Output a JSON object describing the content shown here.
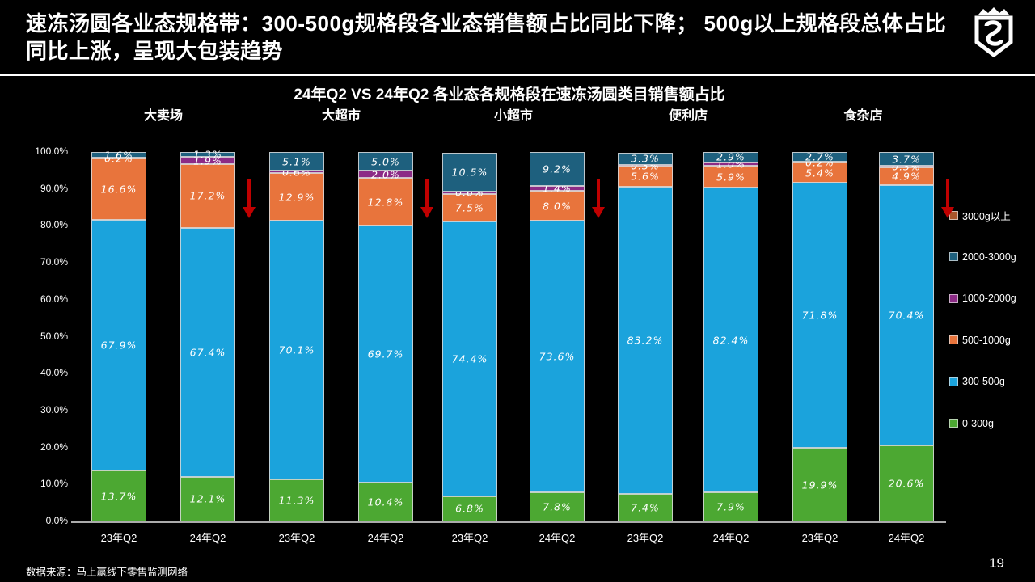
{
  "header": {
    "title": "速冻汤圆各业态规格带：300-500g规格段各业态销售额占比同比下降； 500g以上规格段总体占比同比上涨，呈现大包装趋势",
    "logo_icon": "shield-crown-logo"
  },
  "footer": {
    "source": "数据来源：马上赢线下零售监测网络",
    "page": "19"
  },
  "chart_data": {
    "type": "bar",
    "stacked": true,
    "unit": "%",
    "title": "24年Q2 VS 24年Q2 各业态各规格段在速冻汤圆类目销售额占比",
    "ylim": [
      0,
      100
    ],
    "ytick_labels": [
      "0.0%",
      "10.0%",
      "20.0%",
      "30.0%",
      "40.0%",
      "50.0%",
      "60.0%",
      "70.0%",
      "80.0%",
      "90.0%",
      "100.0%"
    ],
    "grid": false,
    "legend_position": "right",
    "legend": [
      {
        "label": "3000g以上",
        "color": "#A9562B"
      },
      {
        "label": "2000-3000g",
        "color": "#1E607E"
      },
      {
        "label": "1000-2000g",
        "color": "#8C2B86"
      },
      {
        "label": "500-1000g",
        "color": "#E8743C"
      },
      {
        "label": "300-500g",
        "color": "#1BA3DC"
      },
      {
        "label": "0-300g",
        "color": "#4CA832"
      }
    ],
    "series_order_bottom_to_top": [
      "0-300g",
      "300-500g",
      "500-1000g",
      "1000-2000g",
      "2000-3000g",
      "3000g以上"
    ],
    "series_colors_bottom_to_top": [
      "#4CA832",
      "#1BA3DC",
      "#E8743C",
      "#8C2B86",
      "#1E607E",
      "#A9562B"
    ],
    "groups": [
      "大卖场",
      "大超市",
      "小超市",
      "便利店",
      "食杂店"
    ],
    "bars": [
      {
        "group": "大卖场",
        "period": "23年Q2",
        "values": [
          13.7,
          67.9,
          16.6,
          0.2,
          1.6,
          0
        ]
      },
      {
        "group": "大卖场",
        "period": "24年Q2",
        "values": [
          12.1,
          67.4,
          17.2,
          1.9,
          1.3,
          0
        ]
      },
      {
        "group": "大超市",
        "period": "23年Q2",
        "values": [
          11.3,
          70.1,
          12.9,
          0.6,
          5.1,
          0
        ]
      },
      {
        "group": "大超市",
        "period": "24年Q2",
        "values": [
          10.4,
          69.7,
          12.8,
          2.0,
          5.0,
          0
        ]
      },
      {
        "group": "小超市",
        "period": "23年Q2",
        "values": [
          6.8,
          74.4,
          7.5,
          0.6,
          10.5,
          0
        ]
      },
      {
        "group": "小超市",
        "period": "24年Q2",
        "values": [
          7.8,
          73.6,
          8.0,
          1.4,
          9.2,
          0
        ]
      },
      {
        "group": "便利店",
        "period": "23年Q2",
        "values": [
          7.4,
          83.2,
          5.6,
          0.3,
          3.3,
          0
        ]
      },
      {
        "group": "便利店",
        "period": "24年Q2",
        "values": [
          7.9,
          82.4,
          5.9,
          1.0,
          2.9,
          0
        ]
      },
      {
        "group": "食杂店",
        "period": "23年Q2",
        "values": [
          19.9,
          71.8,
          5.4,
          0.2,
          2.7,
          0
        ]
      },
      {
        "group": "食杂店",
        "period": "24年Q2",
        "values": [
          20.6,
          70.4,
          4.9,
          0.3,
          3.7,
          0
        ]
      }
    ],
    "decline_arrow_after_bar_indices": [
      1,
      3,
      5,
      9
    ],
    "arrow_color": "#C00000"
  }
}
